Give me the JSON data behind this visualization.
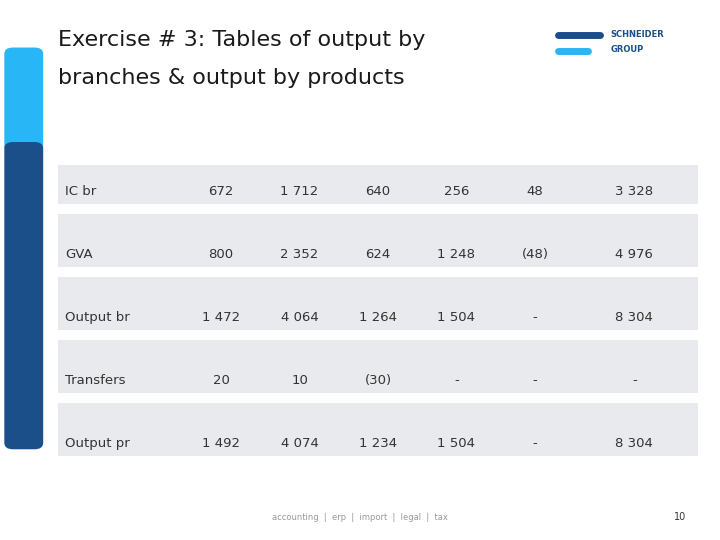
{
  "title_line1": "Exercise # 3: Tables of output by",
  "title_line2": "branches & output by products",
  "title_fontsize": 16,
  "title_color": "#1a1a1a",
  "bg_color": "#ffffff",
  "table_bg": "#e8eaed",
  "left_bar_color_top": "#29b6f6",
  "left_bar_color_bottom": "#1a4f8a",
  "footer_text": "accounting  |  erp  |  import  |  legal  |  tax",
  "page_number": "10",
  "rows": [
    [
      "IC br",
      "672",
      "1 712",
      "640",
      "256",
      "48",
      "3 328"
    ],
    [
      "GVA",
      "800",
      "2 352",
      "624",
      "1 248",
      "(48)",
      "4 976"
    ],
    [
      "Output br",
      "1 472",
      "4 064",
      "1 264",
      "1 504",
      "-",
      "8 304"
    ],
    [
      "Transfers",
      "20",
      "10",
      "(30)",
      "-",
      "-",
      "-"
    ],
    [
      "Output pr",
      "1 492",
      "4 074",
      "1 234",
      "1 504",
      "-",
      "8 304"
    ]
  ],
  "schneider_dark": "#1a4f8a",
  "schneider_light": "#29b6f6",
  "text_color": "#333333",
  "footer_color": "#999999"
}
